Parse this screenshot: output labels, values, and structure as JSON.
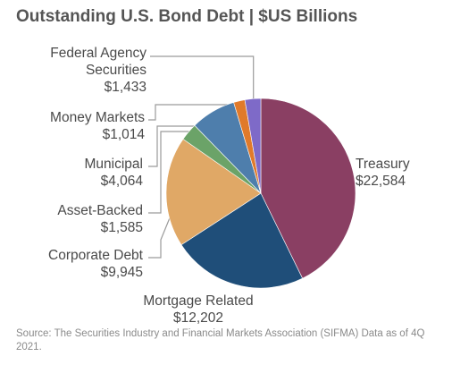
{
  "chart_data": {
    "type": "pie",
    "title": "Outstanding U.S. Bond Debt | $US Billions",
    "slices": [
      {
        "name": "Treasury",
        "value": 22584,
        "label": "$22,584",
        "color": "#8a3f63"
      },
      {
        "name": "Mortgage Related",
        "value": 12202,
        "label": "$12,202",
        "color": "#1f4e79"
      },
      {
        "name": "Corporate Debt",
        "value": 9945,
        "label": "$9,945",
        "color": "#e0a866"
      },
      {
        "name": "Asset-Backed",
        "value": 1585,
        "label": "$1,585",
        "color": "#6ba368"
      },
      {
        "name": "Municipal",
        "value": 4064,
        "label": "$4,064",
        "color": "#4e7eac"
      },
      {
        "name": "Money Markets",
        "value": 1014,
        "label": "$1,014",
        "color": "#e07a2b"
      },
      {
        "name": "Federal Agency Securities",
        "name_lines": [
          "Federal Agency",
          "Securities"
        ],
        "value": 1433,
        "label": "$1,433",
        "color": "#7e6ac8"
      }
    ]
  },
  "source_note": "Source: The Securities Industry and Financial Markets Association (SIFMA) Data as of 4Q 2021."
}
